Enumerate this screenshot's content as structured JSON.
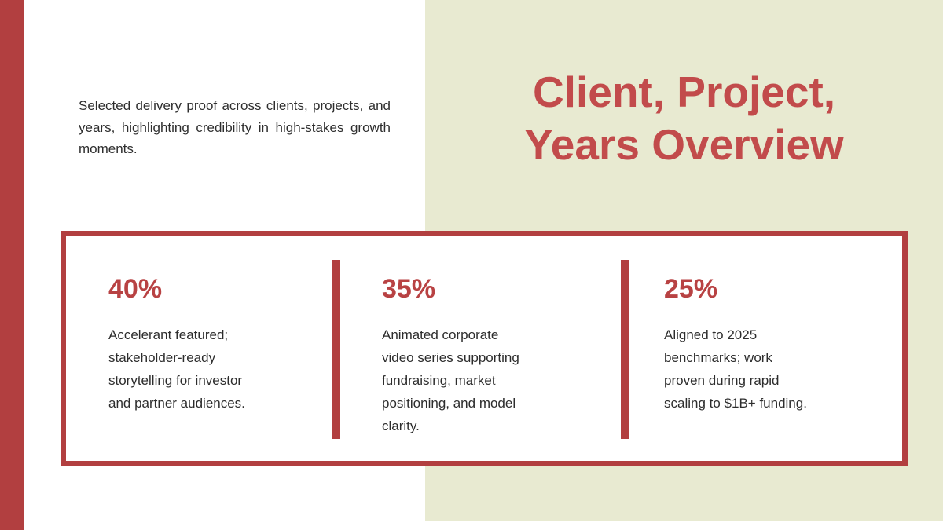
{
  "title": "Client, Project,\nYears Overview",
  "intro": "Selected delivery proof across clients, projects, and years, highlighting credibility in high-stakes growth moments.",
  "stats": [
    {
      "value": "40%",
      "description": "Accelerant featured;\nstakeholder-ready\nstorytelling for investor\nand partner audiences."
    },
    {
      "value": "35%",
      "description": "Animated corporate\nvideo series supporting\nfundraising, market\npositioning, and model\nclarity."
    },
    {
      "value": "25%",
      "description": "Aligned to 2025\nbenchmarks; work\nproven during rapid\nscaling to $1B+ funding."
    }
  ],
  "colors": {
    "accent_red": "#b23f40",
    "title_red": "#c24b4b",
    "stat_red": "#b84243",
    "panel_beige": "#e8ead1",
    "text_dark": "#2d2d2d",
    "background": "#ffffff"
  }
}
